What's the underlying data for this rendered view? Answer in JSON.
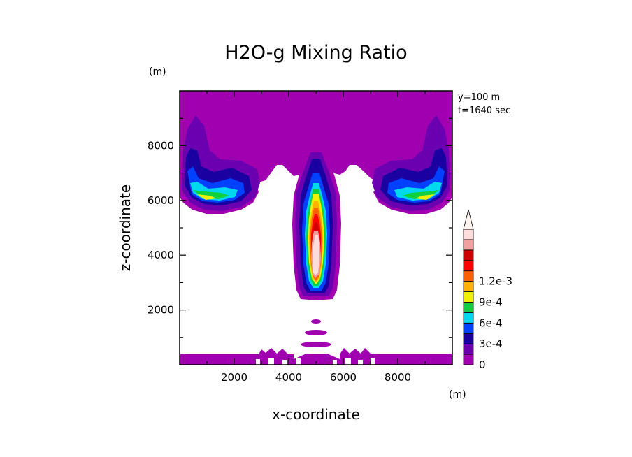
{
  "chart_data": {
    "type": "heatmap",
    "title": "H2O-g Mixing Ratio",
    "xlabel": "x-coordinate",
    "ylabel": "z-coordinate",
    "x_unit": "(m)",
    "y_unit": "(m)",
    "xlim": [
      0,
      10000
    ],
    "ylim": [
      0,
      10000
    ],
    "x_ticks": [
      "2000",
      "4000",
      "6000",
      "8000"
    ],
    "y_ticks": [
      "2000",
      "4000",
      "6000",
      "8000"
    ],
    "annotations": [
      "y=100 m",
      "t=1640 sec"
    ],
    "colorbar": {
      "labels": [
        "0",
        "3e-4",
        "6e-4",
        "9e-4",
        "1.2e-3"
      ],
      "levels": [
        0,
        0.00015,
        0.0003,
        0.00045,
        0.0006,
        0.00075,
        0.0009,
        0.00105,
        0.0012
      ],
      "colors": [
        "#a000b0",
        "#6a00b0",
        "#1a00a0",
        "#0040ff",
        "#00d8f0",
        "#10d040",
        "#f0f000",
        "#ffb000",
        "#ff6000",
        "#ff0000",
        "#d00000",
        "#f0a0a0",
        "#ffdcdc"
      ]
    },
    "features": [
      {
        "name": "upper moist layer",
        "z_range": [
          7800,
          9800
        ],
        "x_range": [
          0,
          10000
        ],
        "max_level": 0
      },
      {
        "name": "left cloud lobe",
        "center": [
          1200,
          6000
        ],
        "max_level": 6
      },
      {
        "name": "right cloud lobe",
        "center": [
          8800,
          6000
        ],
        "max_level": 6
      },
      {
        "name": "central plume",
        "x": 5000,
        "z_range": [
          2500,
          8500
        ],
        "max_level": 12
      },
      {
        "name": "surface layer",
        "z_range": [
          0,
          400
        ],
        "x_range": [
          0,
          10000
        ],
        "max_level": 0
      }
    ]
  }
}
